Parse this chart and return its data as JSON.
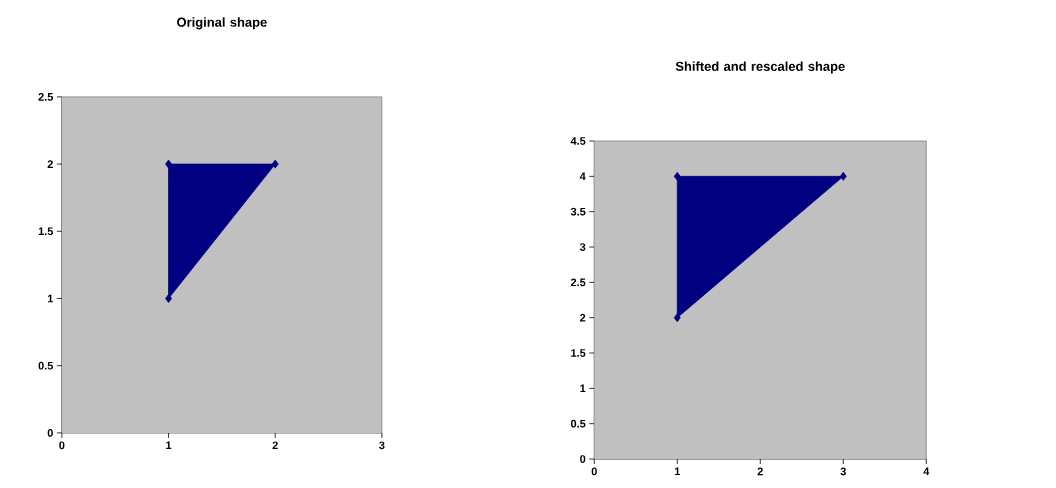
{
  "chart_data": [
    {
      "type": "area",
      "title": "Original shape",
      "x": [
        1,
        1,
        2
      ],
      "values": [
        1,
        2,
        2
      ],
      "color": "#000080",
      "marker": "diamond",
      "xlim": [
        0,
        3
      ],
      "ylim": [
        0,
        2.5
      ],
      "xticks": [
        0,
        1,
        2,
        3
      ],
      "yticks": [
        0,
        0.5,
        1,
        1.5,
        2,
        2.5
      ]
    },
    {
      "type": "area",
      "title": "Shifted and rescaled shape",
      "x": [
        1,
        1,
        3
      ],
      "values": [
        2,
        4,
        4
      ],
      "color": "#000080",
      "marker": "diamond",
      "xlim": [
        0,
        4
      ],
      "ylim": [
        0,
        4.5
      ],
      "xticks": [
        0,
        1,
        2,
        3,
        4
      ],
      "yticks": [
        0,
        0.5,
        1,
        1.5,
        2,
        2.5,
        3,
        3.5,
        4,
        4.5
      ]
    }
  ]
}
